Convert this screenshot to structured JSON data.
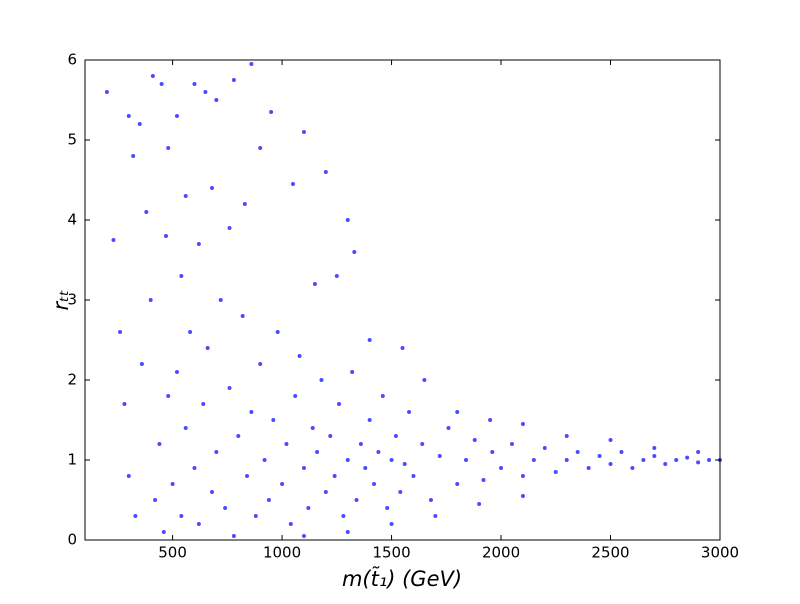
{
  "chart_data": {
    "type": "scatter",
    "xlabel": "m(t̃₁) (GeV)",
    "ylabel": "rₜₜ",
    "xlim": [
      100,
      3000
    ],
    "xticks": [
      500,
      1000,
      1500,
      2000,
      2500,
      3000
    ],
    "ylim": [
      0,
      6
    ],
    "yticks": [
      0,
      1,
      2,
      3,
      4,
      5,
      6
    ],
    "grid": false,
    "series": [
      {
        "color": "#0000ff",
        "x": [
          200,
          230,
          260,
          300,
          320,
          350,
          380,
          410,
          450,
          480,
          520,
          560,
          600,
          650,
          700,
          780,
          860,
          950,
          1050,
          1100,
          1200,
          1300,
          1330,
          900,
          830,
          760,
          680,
          620,
          540,
          470,
          400,
          360,
          280,
          300,
          330,
          1150,
          1250,
          1400,
          1550,
          1650,
          1800,
          1950,
          2100,
          2300,
          2500,
          2700,
          2900,
          420,
          440,
          460,
          480,
          500,
          520,
          540,
          560,
          580,
          600,
          620,
          640,
          660,
          680,
          700,
          720,
          740,
          760,
          780,
          800,
          820,
          840,
          860,
          880,
          900,
          920,
          940,
          960,
          980,
          1000,
          1020,
          1040,
          1060,
          1080,
          1100,
          1120,
          1140,
          1160,
          1180,
          1200,
          1220,
          1240,
          1260,
          1280,
          1300,
          1320,
          1340,
          1360,
          1380,
          1400,
          1420,
          1440,
          1460,
          1480,
          1500,
          1520,
          1540,
          1560,
          1580,
          1600,
          1640,
          1680,
          1720,
          1760,
          1800,
          1840,
          1880,
          1920,
          1960,
          2000,
          2050,
          2100,
          2150,
          2200,
          2250,
          2300,
          2350,
          2400,
          2450,
          2500,
          2550,
          2600,
          2650,
          2700,
          2750,
          2800,
          2850,
          2900,
          2950,
          3000,
          1500,
          1700,
          1900,
          1300,
          1100,
          2100
        ],
        "y": [
          5.6,
          3.75,
          2.6,
          5.3,
          4.8,
          5.2,
          4.1,
          5.8,
          5.7,
          4.9,
          5.3,
          4.3,
          5.7,
          5.6,
          5.5,
          5.75,
          5.95,
          5.35,
          4.45,
          5.1,
          4.6,
          4.0,
          3.6,
          4.9,
          4.2,
          3.9,
          4.4,
          3.7,
          3.3,
          3.8,
          3.0,
          2.2,
          1.7,
          0.8,
          0.3,
          3.2,
          3.3,
          2.5,
          2.4,
          2.0,
          1.6,
          1.5,
          1.45,
          1.3,
          1.25,
          1.15,
          1.1,
          0.5,
          1.2,
          0.1,
          1.8,
          0.7,
          2.1,
          0.3,
          1.4,
          2.6,
          0.9,
          0.2,
          1.7,
          2.4,
          0.6,
          1.1,
          3.0,
          0.4,
          1.9,
          0.05,
          1.3,
          2.8,
          0.8,
          1.6,
          0.3,
          2.2,
          1.0,
          0.5,
          1.5,
          2.6,
          0.7,
          1.2,
          0.2,
          1.8,
          2.3,
          0.9,
          0.4,
          1.4,
          1.1,
          2.0,
          0.6,
          1.3,
          0.8,
          1.7,
          0.3,
          1.0,
          2.1,
          0.5,
          1.2,
          0.9,
          1.5,
          0.7,
          1.1,
          1.8,
          0.4,
          1.0,
          1.3,
          0.6,
          0.95,
          1.6,
          0.8,
          1.2,
          0.5,
          1.05,
          1.4,
          0.7,
          1.0,
          1.25,
          0.75,
          1.1,
          0.9,
          1.2,
          0.8,
          1.0,
          1.15,
          0.85,
          1.0,
          1.1,
          0.9,
          1.05,
          0.95,
          1.1,
          0.9,
          1.0,
          1.05,
          0.95,
          1.0,
          1.03,
          0.97,
          1.0,
          1.0,
          0.2,
          0.3,
          0.45,
          0.1,
          0.05,
          0.55
        ]
      }
    ]
  }
}
